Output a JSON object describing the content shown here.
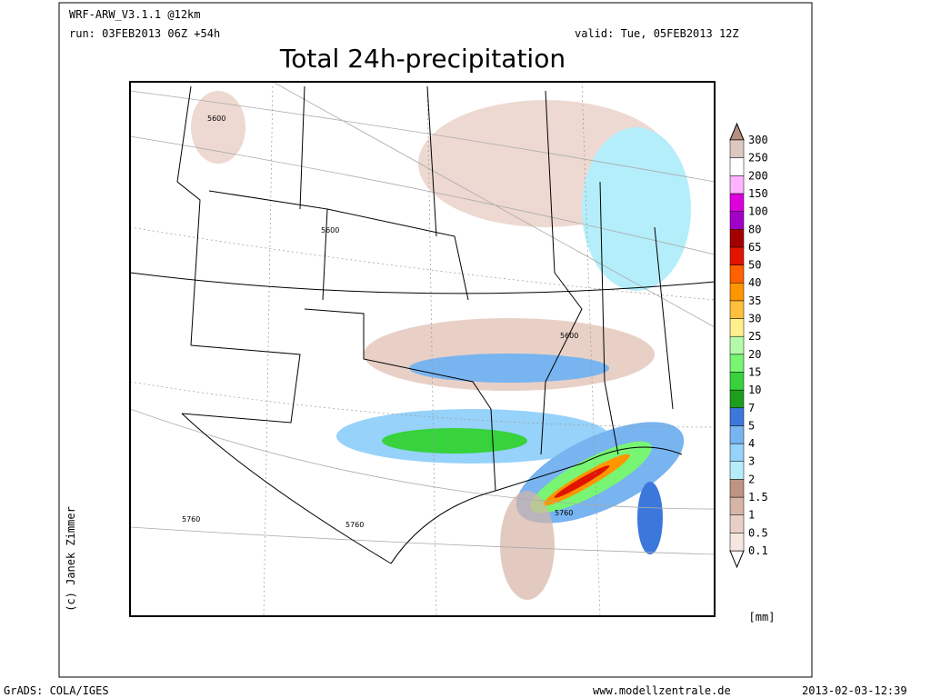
{
  "header": {
    "model": "WRF-ARW_V3.1.1 @12km",
    "run": "run: 03FEB2013 06Z +54h",
    "valid": "valid: Tue, 05FEB2013 12Z",
    "title": "Total 24h-precipitation"
  },
  "legend": {
    "levels": [
      0.1,
      0.5,
      1,
      1.5,
      2,
      3,
      4,
      5,
      7,
      10,
      15,
      20,
      25,
      30,
      35,
      40,
      50,
      65,
      80,
      100,
      150,
      200,
      250,
      300
    ],
    "colors": [
      "#f6e6e0",
      "#e8d0c6",
      "#d6b4a6",
      "#c09484",
      "#b4eefa",
      "#96d2fa",
      "#78b4f0",
      "#3c78dc",
      "#1e9e1e",
      "#37d23c",
      "#78f573",
      "#b4faaa",
      "#fff08c",
      "#ffc03c",
      "#ff9600",
      "#ff6000",
      "#e11400",
      "#a50000",
      "#a000c8",
      "#dc00dc",
      "#ffb4ff",
      "#ffffff",
      "#dcc8c0"
    ],
    "unit": "[mm]"
  },
  "contours": [
    "5600",
    "5600",
    "5600",
    "5760",
    "5760",
    "5760"
  ],
  "credit": "(c) Janek Zimmer",
  "footer": {
    "left": "GrADS: COLA/IGES",
    "center": "www.modellzentrale.de",
    "right": "2013-02-03-12:39"
  }
}
